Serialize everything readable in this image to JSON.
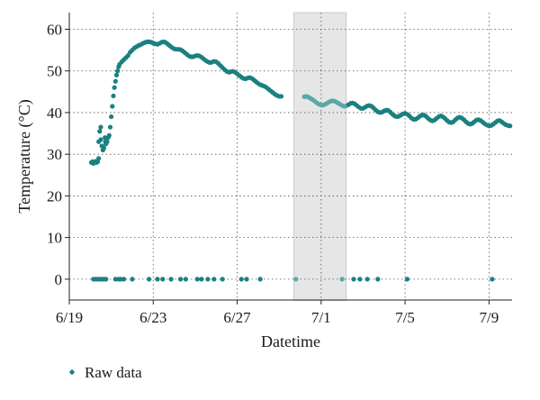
{
  "chart_data": {
    "type": "scatter",
    "xlabel": "Datetime",
    "ylabel": "Temperature (°C)",
    "x_ticks": [
      "6/19",
      "6/23",
      "6/27",
      "7/1",
      "7/5",
      "7/9"
    ],
    "x_tick_days": [
      0,
      4,
      8,
      12,
      16,
      20
    ],
    "y_ticks": [
      "0",
      "10",
      "20",
      "30",
      "40",
      "50",
      "60"
    ],
    "y_tick_values": [
      0,
      10,
      20,
      30,
      40,
      50,
      60
    ],
    "xlim_days": [
      0,
      21.1
    ],
    "ylim": [
      -5,
      64
    ],
    "grid": "dotted",
    "legend": "bottom-left",
    "highlight_region_days": [
      10.7,
      13.2
    ],
    "highlight_color": "#e6e6e6",
    "series": [
      {
        "name": "Raw data",
        "color": "#1a8080",
        "highlight_color": "#5aa8a8",
        "points": [
          [
            1.05,
            28.0
          ],
          [
            1.1,
            28.2
          ],
          [
            1.15,
            27.8
          ],
          [
            1.2,
            28.1
          ],
          [
            1.25,
            28.3
          ],
          [
            1.3,
            28.0
          ],
          [
            1.35,
            28.2
          ],
          [
            1.4,
            29.0
          ],
          [
            1.4,
            33.0
          ],
          [
            1.45,
            35.5
          ],
          [
            1.5,
            36.5
          ],
          [
            1.5,
            33.5
          ],
          [
            1.55,
            32.0
          ],
          [
            1.6,
            31.0
          ],
          [
            1.65,
            31.5
          ],
          [
            1.7,
            34.0
          ],
          [
            1.72,
            33.0
          ],
          [
            1.75,
            32.5
          ],
          [
            1.8,
            33.0
          ],
          [
            1.85,
            34.0
          ],
          [
            1.9,
            34.5
          ],
          [
            1.95,
            36.5
          ],
          [
            2.0,
            39.0
          ],
          [
            2.05,
            41.5
          ],
          [
            2.1,
            44.0
          ],
          [
            2.15,
            46.0
          ],
          [
            2.2,
            47.5
          ],
          [
            2.25,
            49.0
          ],
          [
            2.3,
            50.0
          ],
          [
            2.35,
            51.0
          ],
          [
            2.4,
            51.6
          ],
          [
            2.5,
            52.2
          ],
          [
            2.6,
            52.7
          ],
          [
            2.7,
            53.2
          ],
          [
            2.8,
            53.7
          ],
          [
            2.9,
            54.5
          ],
          [
            3.0,
            55.0
          ],
          [
            3.1,
            55.5
          ],
          [
            3.2,
            55.8
          ],
          [
            3.3,
            56.1
          ],
          [
            3.4,
            56.3
          ],
          [
            3.5,
            56.6
          ],
          [
            3.6,
            56.8
          ],
          [
            3.7,
            57.0
          ],
          [
            3.8,
            57.0
          ],
          [
            3.9,
            56.9
          ],
          [
            4.0,
            56.7
          ],
          [
            4.1,
            56.5
          ],
          [
            4.2,
            56.4
          ],
          [
            4.3,
            56.6
          ],
          [
            4.4,
            56.9
          ],
          [
            4.5,
            57.0
          ],
          [
            4.6,
            56.8
          ],
          [
            4.7,
            56.4
          ],
          [
            4.8,
            56.0
          ],
          [
            4.9,
            55.6
          ],
          [
            5.0,
            55.3
          ],
          [
            5.1,
            55.2
          ],
          [
            5.2,
            55.2
          ],
          [
            5.3,
            55.1
          ],
          [
            5.4,
            54.8
          ],
          [
            5.5,
            54.4
          ],
          [
            5.6,
            54.0
          ],
          [
            5.7,
            53.6
          ],
          [
            5.8,
            53.4
          ],
          [
            5.9,
            53.4
          ],
          [
            6.0,
            53.6
          ],
          [
            6.1,
            53.7
          ],
          [
            6.2,
            53.6
          ],
          [
            6.3,
            53.3
          ],
          [
            6.4,
            52.9
          ],
          [
            6.5,
            52.5
          ],
          [
            6.6,
            52.2
          ],
          [
            6.7,
            52.0
          ],
          [
            6.8,
            52.1
          ],
          [
            6.9,
            52.3
          ],
          [
            7.0,
            52.2
          ],
          [
            7.1,
            51.8
          ],
          [
            7.2,
            51.3
          ],
          [
            7.3,
            50.8
          ],
          [
            7.4,
            50.3
          ],
          [
            7.5,
            49.9
          ],
          [
            7.6,
            49.7
          ],
          [
            7.7,
            49.8
          ],
          [
            7.8,
            49.9
          ],
          [
            7.9,
            49.7
          ],
          [
            8.0,
            49.3
          ],
          [
            8.1,
            48.9
          ],
          [
            8.2,
            48.5
          ],
          [
            8.3,
            48.2
          ],
          [
            8.4,
            48.1
          ],
          [
            8.5,
            48.3
          ],
          [
            8.6,
            48.4
          ],
          [
            8.7,
            48.2
          ],
          [
            8.8,
            47.8
          ],
          [
            8.9,
            47.4
          ],
          [
            9.0,
            47.0
          ],
          [
            9.1,
            46.7
          ],
          [
            9.2,
            46.5
          ],
          [
            9.3,
            46.3
          ],
          [
            9.4,
            46.0
          ],
          [
            9.5,
            45.6
          ],
          [
            9.6,
            45.2
          ],
          [
            9.7,
            44.8
          ],
          [
            9.8,
            44.4
          ],
          [
            9.9,
            44.1
          ],
          [
            10.0,
            43.9
          ],
          [
            10.1,
            43.9
          ],
          [
            11.2,
            43.8
          ],
          [
            11.3,
            43.9
          ],
          [
            11.4,
            43.7
          ],
          [
            11.5,
            43.4
          ],
          [
            11.6,
            43.1
          ],
          [
            11.7,
            42.7
          ],
          [
            11.8,
            42.3
          ],
          [
            11.9,
            42.0
          ],
          [
            12.0,
            41.8
          ],
          [
            12.1,
            41.8
          ],
          [
            12.2,
            42.0
          ],
          [
            12.3,
            42.3
          ],
          [
            12.4,
            42.6
          ],
          [
            12.5,
            42.8
          ],
          [
            12.6,
            42.8
          ],
          [
            12.7,
            42.6
          ],
          [
            12.8,
            42.3
          ],
          [
            12.9,
            42.0
          ],
          [
            13.0,
            41.7
          ],
          [
            13.1,
            41.5
          ],
          [
            13.2,
            41.6
          ],
          [
            13.3,
            41.9
          ],
          [
            13.4,
            42.2
          ],
          [
            13.5,
            42.3
          ],
          [
            13.6,
            42.1
          ],
          [
            13.7,
            41.7
          ],
          [
            13.8,
            41.3
          ],
          [
            13.9,
            41.0
          ],
          [
            14.0,
            41.0
          ],
          [
            14.1,
            41.3
          ],
          [
            14.2,
            41.6
          ],
          [
            14.3,
            41.7
          ],
          [
            14.4,
            41.5
          ],
          [
            14.5,
            41.1
          ],
          [
            14.6,
            40.6
          ],
          [
            14.7,
            40.2
          ],
          [
            14.8,
            40.0
          ],
          [
            14.9,
            40.1
          ],
          [
            15.0,
            40.4
          ],
          [
            15.1,
            40.6
          ],
          [
            15.2,
            40.5
          ],
          [
            15.3,
            40.1
          ],
          [
            15.4,
            39.6
          ],
          [
            15.5,
            39.2
          ],
          [
            15.6,
            39.0
          ],
          [
            15.7,
            39.1
          ],
          [
            15.8,
            39.4
          ],
          [
            15.9,
            39.7
          ],
          [
            16.0,
            39.8
          ],
          [
            16.1,
            39.6
          ],
          [
            16.2,
            39.2
          ],
          [
            16.3,
            38.7
          ],
          [
            16.4,
            38.4
          ],
          [
            16.5,
            38.4
          ],
          [
            16.6,
            38.7
          ],
          [
            16.7,
            39.1
          ],
          [
            16.8,
            39.4
          ],
          [
            16.9,
            39.4
          ],
          [
            17.0,
            39.1
          ],
          [
            17.1,
            38.6
          ],
          [
            17.2,
            38.2
          ],
          [
            17.3,
            38.0
          ],
          [
            17.4,
            38.2
          ],
          [
            17.5,
            38.6
          ],
          [
            17.6,
            39.0
          ],
          [
            17.7,
            39.2
          ],
          [
            17.8,
            39.0
          ],
          [
            17.9,
            38.6
          ],
          [
            18.0,
            38.1
          ],
          [
            18.1,
            37.7
          ],
          [
            18.2,
            37.6
          ],
          [
            18.3,
            37.8
          ],
          [
            18.4,
            38.3
          ],
          [
            18.5,
            38.7
          ],
          [
            18.6,
            38.9
          ],
          [
            18.7,
            38.7
          ],
          [
            18.8,
            38.3
          ],
          [
            18.9,
            37.8
          ],
          [
            19.0,
            37.4
          ],
          [
            19.1,
            37.2
          ],
          [
            19.2,
            37.4
          ],
          [
            19.3,
            37.8
          ],
          [
            19.4,
            38.2
          ],
          [
            19.5,
            38.3
          ],
          [
            19.6,
            38.1
          ],
          [
            19.7,
            37.7
          ],
          [
            19.8,
            37.3
          ],
          [
            19.9,
            37.0
          ],
          [
            20.0,
            36.8
          ],
          [
            20.1,
            36.9
          ],
          [
            20.2,
            37.2
          ],
          [
            20.3,
            37.6
          ],
          [
            20.4,
            38.0
          ],
          [
            20.5,
            38.1
          ],
          [
            20.6,
            37.8
          ],
          [
            20.7,
            37.4
          ],
          [
            20.8,
            37.1
          ],
          [
            20.9,
            36.9
          ],
          [
            21.0,
            36.8
          ],
          [
            1.15,
            0
          ],
          [
            1.25,
            0
          ],
          [
            1.35,
            0
          ],
          [
            1.45,
            0
          ],
          [
            1.55,
            0
          ],
          [
            1.65,
            0
          ],
          [
            1.75,
            0
          ],
          [
            2.2,
            0
          ],
          [
            2.35,
            0
          ],
          [
            2.45,
            0
          ],
          [
            2.6,
            0
          ],
          [
            3.0,
            0
          ],
          [
            3.8,
            0
          ],
          [
            4.2,
            0
          ],
          [
            4.45,
            0
          ],
          [
            4.85,
            0
          ],
          [
            5.3,
            0
          ],
          [
            5.55,
            0
          ],
          [
            6.1,
            0
          ],
          [
            6.3,
            0
          ],
          [
            6.6,
            0
          ],
          [
            6.9,
            0
          ],
          [
            7.3,
            0
          ],
          [
            8.2,
            0
          ],
          [
            8.45,
            0
          ],
          [
            9.1,
            0
          ],
          [
            10.8,
            0
          ],
          [
            13.0,
            0
          ],
          [
            13.55,
            0
          ],
          [
            13.85,
            0
          ],
          [
            14.2,
            0
          ],
          [
            14.7,
            0
          ],
          [
            16.1,
            0
          ],
          [
            20.15,
            0
          ]
        ]
      }
    ]
  }
}
